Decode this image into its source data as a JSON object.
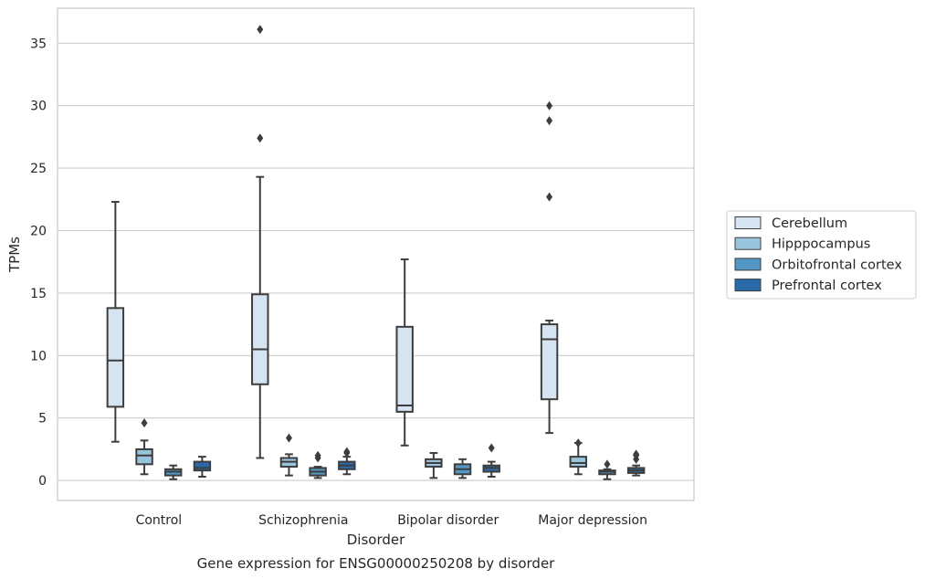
{
  "chart_data": {
    "type": "box",
    "title": "",
    "caption": "Gene expression for ENSG00000250208 by disorder",
    "xlabel": "Disorder",
    "ylabel": "TPMs",
    "ylim": [
      -1.6,
      37.8
    ],
    "yticks": [
      0,
      5,
      10,
      15,
      20,
      25,
      30,
      35
    ],
    "grid": "horizontal",
    "legend_position": "right",
    "categories": [
      "Control",
      "Schizophrenia",
      "Bipolar disorder",
      "Major depression"
    ],
    "series": [
      {
        "name": "Cerebellum",
        "color": "#d6e4f1",
        "boxes": [
          {
            "whislo": 3.1,
            "q1": 5.9,
            "med": 9.6,
            "q3": 13.8,
            "whishi": 22.3,
            "fliers": []
          },
          {
            "whislo": 1.8,
            "q1": 7.7,
            "med": 10.5,
            "q3": 14.9,
            "whishi": 24.3,
            "fliers": [
              27.4,
              36.1
            ]
          },
          {
            "whislo": 2.8,
            "q1": 5.5,
            "med": 6.0,
            "q3": 12.3,
            "whishi": 17.7,
            "fliers": []
          },
          {
            "whislo": 3.8,
            "q1": 6.5,
            "med": 11.3,
            "q3": 12.5,
            "whishi": 12.8,
            "fliers": [
              22.7,
              28.8,
              30.0
            ]
          }
        ]
      },
      {
        "name": "Hipppocampus",
        "color": "#9ac4de",
        "boxes": [
          {
            "whislo": 0.5,
            "q1": 1.3,
            "med": 2.0,
            "q3": 2.5,
            "whishi": 3.2,
            "fliers": [
              4.6
            ]
          },
          {
            "whislo": 0.4,
            "q1": 1.1,
            "med": 1.5,
            "q3": 1.8,
            "whishi": 2.1,
            "fliers": [
              3.4
            ]
          },
          {
            "whislo": 0.2,
            "q1": 1.1,
            "med": 1.4,
            "q3": 1.7,
            "whishi": 2.2,
            "fliers": []
          },
          {
            "whislo": 0.5,
            "q1": 1.1,
            "med": 1.4,
            "q3": 1.9,
            "whishi": 3.0,
            "fliers": [
              3.0
            ]
          }
        ]
      },
      {
        "name": "Orbitofrontal cortex",
        "color": "#5497c6",
        "boxes": [
          {
            "whislo": 0.1,
            "q1": 0.4,
            "med": 0.7,
            "q3": 0.9,
            "whishi": 1.2,
            "fliers": []
          },
          {
            "whislo": 0.2,
            "q1": 0.4,
            "med": 0.7,
            "q3": 1.0,
            "whishi": 1.1,
            "fliers": [
              1.8,
              2.0
            ]
          },
          {
            "whislo": 0.2,
            "q1": 0.5,
            "med": 0.9,
            "q3": 1.3,
            "whishi": 1.7,
            "fliers": []
          },
          {
            "whislo": 0.1,
            "q1": 0.5,
            "med": 0.7,
            "q3": 0.8,
            "whishi": 0.9,
            "fliers": [
              1.3
            ]
          }
        ]
      },
      {
        "name": "Prefrontal cortex",
        "color": "#2b6aa8",
        "boxes": [
          {
            "whislo": 0.3,
            "q1": 0.8,
            "med": 1.0,
            "q3": 1.5,
            "whishi": 1.9,
            "fliers": []
          },
          {
            "whislo": 0.5,
            "q1": 0.9,
            "med": 1.2,
            "q3": 1.5,
            "whishi": 1.9,
            "fliers": [
              2.2,
              2.3
            ]
          },
          {
            "whislo": 0.3,
            "q1": 0.7,
            "med": 1.0,
            "q3": 1.2,
            "whishi": 1.5,
            "fliers": [
              2.6
            ]
          },
          {
            "whislo": 0.4,
            "q1": 0.6,
            "med": 0.8,
            "q3": 1.0,
            "whishi": 1.2,
            "fliers": [
              1.7,
              2.0,
              2.1
            ]
          }
        ]
      }
    ]
  }
}
